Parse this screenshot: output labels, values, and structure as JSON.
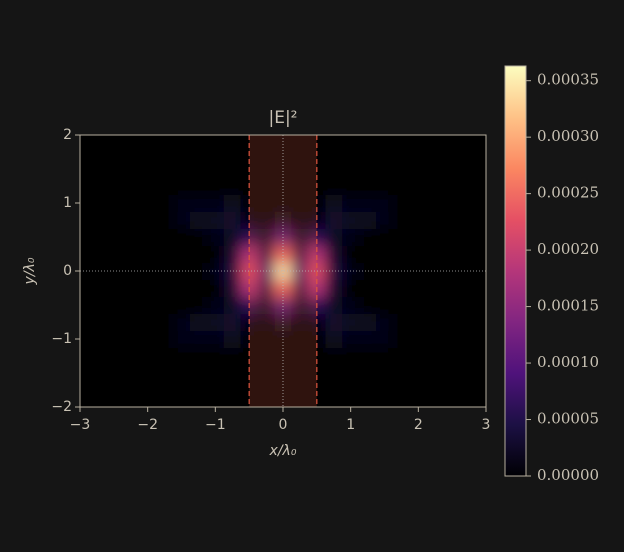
{
  "chart_data": {
    "type": "heatmap",
    "title": "|E|²",
    "x_label": "x/λ₀",
    "y_label": "y/λ₀",
    "colormap": "magma",
    "x": [
      -3,
      -2.75,
      -2.5,
      -2.25,
      -2,
      -1.75,
      -1.5,
      -1.25,
      -1,
      -0.75,
      -0.5,
      -0.25,
      0,
      0.25,
      0.5,
      0.75,
      1,
      1.25,
      1.5,
      1.75,
      2,
      2.25,
      2.5,
      2.75,
      3
    ],
    "y": [
      -2,
      -1.75,
      -1.5,
      -1.25,
      -1,
      -0.75,
      -0.5,
      -0.25,
      0,
      0.25,
      0.5,
      0.75,
      1,
      1.25,
      1.5,
      1.75,
      2
    ],
    "values": [
      [
        0,
        0,
        0,
        0,
        0,
        0,
        0,
        0,
        0,
        0,
        0,
        0,
        0,
        0,
        0,
        0,
        0,
        0,
        0,
        0,
        0,
        0,
        0,
        0,
        0
      ],
      [
        0,
        0,
        0,
        0,
        0,
        0,
        0,
        0,
        0,
        0,
        0,
        0,
        0,
        0,
        0,
        0,
        0,
        0,
        0,
        0,
        0,
        0,
        0,
        0,
        0
      ],
      [
        0,
        0,
        0,
        0,
        0,
        0,
        0,
        0,
        0,
        0,
        0,
        0,
        0,
        0,
        0,
        0,
        0,
        0,
        0,
        0,
        0,
        0,
        0,
        0,
        0
      ],
      [
        0,
        0,
        0,
        0,
        0,
        0,
        0,
        0,
        0,
        0,
        0,
        0,
        0,
        0,
        0,
        0,
        0,
        0,
        0,
        0,
        0,
        0,
        0,
        0,
        0
      ],
      [
        0,
        0,
        0,
        0,
        0,
        0,
        1e-05,
        1e-05,
        1e-05,
        2e-05,
        0,
        0,
        0,
        0,
        0,
        2e-05,
        1e-05,
        1e-05,
        1e-05,
        0,
        0,
        0,
        0,
        0,
        0
      ],
      [
        0,
        0,
        0,
        0,
        0,
        0,
        1e-05,
        2e-05,
        2e-05,
        3e-05,
        1e-05,
        0,
        2e-05,
        0,
        1e-05,
        3e-05,
        2e-05,
        2e-05,
        1e-05,
        0,
        0,
        0,
        0,
        0,
        0
      ],
      [
        0,
        0,
        0,
        0,
        0,
        0,
        0,
        0,
        1e-05,
        2e-05,
        6e-05,
        2e-05,
        0.0001,
        2e-05,
        6e-05,
        2e-05,
        1e-05,
        0,
        0,
        0,
        0,
        0,
        0,
        0,
        0
      ],
      [
        0,
        0,
        0,
        0,
        0,
        0,
        0,
        0,
        0,
        3e-05,
        0.00018,
        5e-05,
        0.00025,
        5e-05,
        0.00018,
        3e-05,
        0,
        0,
        0,
        0,
        0,
        0,
        0,
        0,
        0
      ],
      [
        0,
        0,
        0,
        0,
        0,
        0,
        0,
        0,
        1e-05,
        4e-05,
        0.00022,
        8e-05,
        0.00036,
        8e-05,
        0.00022,
        4e-05,
        1e-05,
        0,
        0,
        0,
        0,
        0,
        0,
        0,
        0
      ],
      [
        0,
        0,
        0,
        0,
        0,
        0,
        0,
        0,
        0,
        3e-05,
        0.00018,
        5e-05,
        0.00025,
        5e-05,
        0.00018,
        3e-05,
        0,
        0,
        0,
        0,
        0,
        0,
        0,
        0,
        0
      ],
      [
        0,
        0,
        0,
        0,
        0,
        0,
        0,
        0,
        1e-05,
        2e-05,
        6e-05,
        2e-05,
        0.0001,
        2e-05,
        6e-05,
        2e-05,
        1e-05,
        0,
        0,
        0,
        0,
        0,
        0,
        0,
        0
      ],
      [
        0,
        0,
        0,
        0,
        0,
        0,
        1e-05,
        2e-05,
        2e-05,
        3e-05,
        1e-05,
        0,
        2e-05,
        0,
        1e-05,
        3e-05,
        2e-05,
        2e-05,
        1e-05,
        0,
        0,
        0,
        0,
        0,
        0
      ],
      [
        0,
        0,
        0,
        0,
        0,
        0,
        1e-05,
        1e-05,
        1e-05,
        2e-05,
        0,
        0,
        0,
        0,
        0,
        2e-05,
        1e-05,
        1e-05,
        1e-05,
        0,
        0,
        0,
        0,
        0,
        0
      ],
      [
        0,
        0,
        0,
        0,
        0,
        0,
        0,
        0,
        0,
        0,
        0,
        0,
        0,
        0,
        0,
        0,
        0,
        0,
        0,
        0,
        0,
        0,
        0,
        0,
        0
      ],
      [
        0,
        0,
        0,
        0,
        0,
        0,
        0,
        0,
        0,
        0,
        0,
        0,
        0,
        0,
        0,
        0,
        0,
        0,
        0,
        0,
        0,
        0,
        0,
        0,
        0
      ],
      [
        0,
        0,
        0,
        0,
        0,
        0,
        0,
        0,
        0,
        0,
        0,
        0,
        0,
        0,
        0,
        0,
        0,
        0,
        0,
        0,
        0,
        0,
        0,
        0,
        0
      ],
      [
        0,
        0,
        0,
        0,
        0,
        0,
        0,
        0,
        0,
        0,
        0,
        0,
        0,
        0,
        0,
        0,
        0,
        0,
        0,
        0,
        0,
        0,
        0,
        0,
        0
      ]
    ],
    "xlim": [
      -3,
      3
    ],
    "ylim": [
      -2,
      2
    ],
    "xticks": [
      {
        "value": -3,
        "label": "−3"
      },
      {
        "value": -2,
        "label": "−2"
      },
      {
        "value": -1,
        "label": "−1"
      },
      0,
      1,
      2,
      3
    ],
    "yticks": [
      {
        "value": -2,
        "label": "−2"
      },
      {
        "value": -1,
        "label": "−1"
      },
      0,
      1,
      2
    ],
    "band": [
      -0.5,
      0.5
    ],
    "crosshair": [
      0,
      0
    ],
    "clim": [
      0,
      0.000363
    ],
    "cticks": [
      {
        "value": 0,
        "label": "0.00000"
      },
      {
        "value": 5e-05,
        "label": "0.00005"
      },
      {
        "value": 0.0001,
        "label": "0.00010"
      },
      {
        "value": 0.00015,
        "label": "0.00015"
      },
      {
        "value": 0.0002,
        "label": "0.00020"
      },
      {
        "value": 0.00025,
        "label": "0.00025"
      },
      {
        "value": 0.0003,
        "label": "0.00030"
      },
      {
        "value": 0.00035,
        "label": "0.00035"
      }
    ]
  }
}
